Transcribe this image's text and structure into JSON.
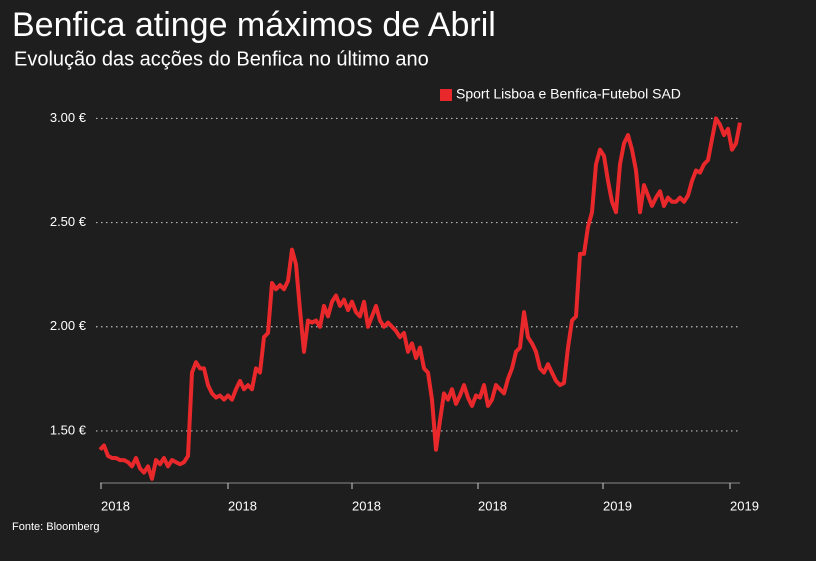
{
  "chart_data": {
    "type": "line",
    "title": "Benfica atinge máximos de Abril",
    "subtitle": "Evolução das acções do Benfica no último ano",
    "source": "Fonte: Bloomberg",
    "legend": "top-right",
    "grid": true,
    "series": [
      {
        "name": "Sport Lisboa e Benfica-Futebol SAD",
        "color": "#e8282b",
        "values": [
          1.41,
          1.43,
          1.38,
          1.37,
          1.37,
          1.36,
          1.36,
          1.35,
          1.33,
          1.37,
          1.32,
          1.3,
          1.33,
          1.27,
          1.36,
          1.34,
          1.37,
          1.33,
          1.36,
          1.35,
          1.34,
          1.35,
          1.38,
          1.78,
          1.83,
          1.8,
          1.8,
          1.72,
          1.68,
          1.66,
          1.67,
          1.65,
          1.67,
          1.65,
          1.7,
          1.74,
          1.7,
          1.72,
          1.7,
          1.8,
          1.78,
          1.95,
          1.97,
          2.21,
          2.18,
          2.2,
          2.18,
          2.22,
          2.37,
          2.3,
          2.08,
          1.88,
          2.03,
          2.02,
          2.03,
          2.0,
          2.1,
          2.05,
          2.12,
          2.15,
          2.1,
          2.13,
          2.08,
          2.12,
          2.07,
          2.05,
          2.12,
          2.0,
          2.05,
          2.1,
          2.03,
          2.0,
          2.02,
          2.0,
          1.98,
          1.95,
          1.97,
          1.88,
          1.92,
          1.85,
          1.9,
          1.8,
          1.78,
          1.65,
          1.41,
          1.55,
          1.68,
          1.65,
          1.7,
          1.63,
          1.67,
          1.72,
          1.66,
          1.62,
          1.67,
          1.66,
          1.72,
          1.62,
          1.65,
          1.72,
          1.7,
          1.68,
          1.75,
          1.8,
          1.88,
          1.9,
          2.07,
          1.95,
          1.92,
          1.88,
          1.8,
          1.78,
          1.82,
          1.78,
          1.74,
          1.72,
          1.73,
          1.9,
          2.03,
          2.05,
          2.35,
          2.35,
          2.48,
          2.55,
          2.78,
          2.85,
          2.82,
          2.7,
          2.6,
          2.55,
          2.78,
          2.88,
          2.92,
          2.85,
          2.75,
          2.55,
          2.68,
          2.63,
          2.58,
          2.62,
          2.65,
          2.58,
          2.62,
          2.6,
          2.6,
          2.62,
          2.6,
          2.63,
          2.7,
          2.75,
          2.74,
          2.78,
          2.8,
          2.9,
          3.0,
          2.97,
          2.92,
          2.95,
          2.85,
          2.88,
          2.98
        ]
      }
    ],
    "xlim": [
      0,
      160
    ],
    "xticks": [
      {
        "value": 0.25,
        "label": "2018"
      },
      {
        "value": 32,
        "label": "2018"
      },
      {
        "value": 63,
        "label": "2018"
      },
      {
        "value": 94.5,
        "label": "2018"
      },
      {
        "value": 125.75,
        "label": "2019"
      },
      {
        "value": 157.5,
        "label": "2019"
      }
    ],
    "ylim": [
      1.25,
      3.05
    ],
    "yticks": [
      {
        "value": 1.5,
        "label": "1.50 €"
      },
      {
        "value": 2,
        "label": "2.00 €"
      },
      {
        "value": 2.5,
        "label": "2.50 €"
      },
      {
        "value": 3,
        "label": "3.00 €"
      }
    ]
  }
}
